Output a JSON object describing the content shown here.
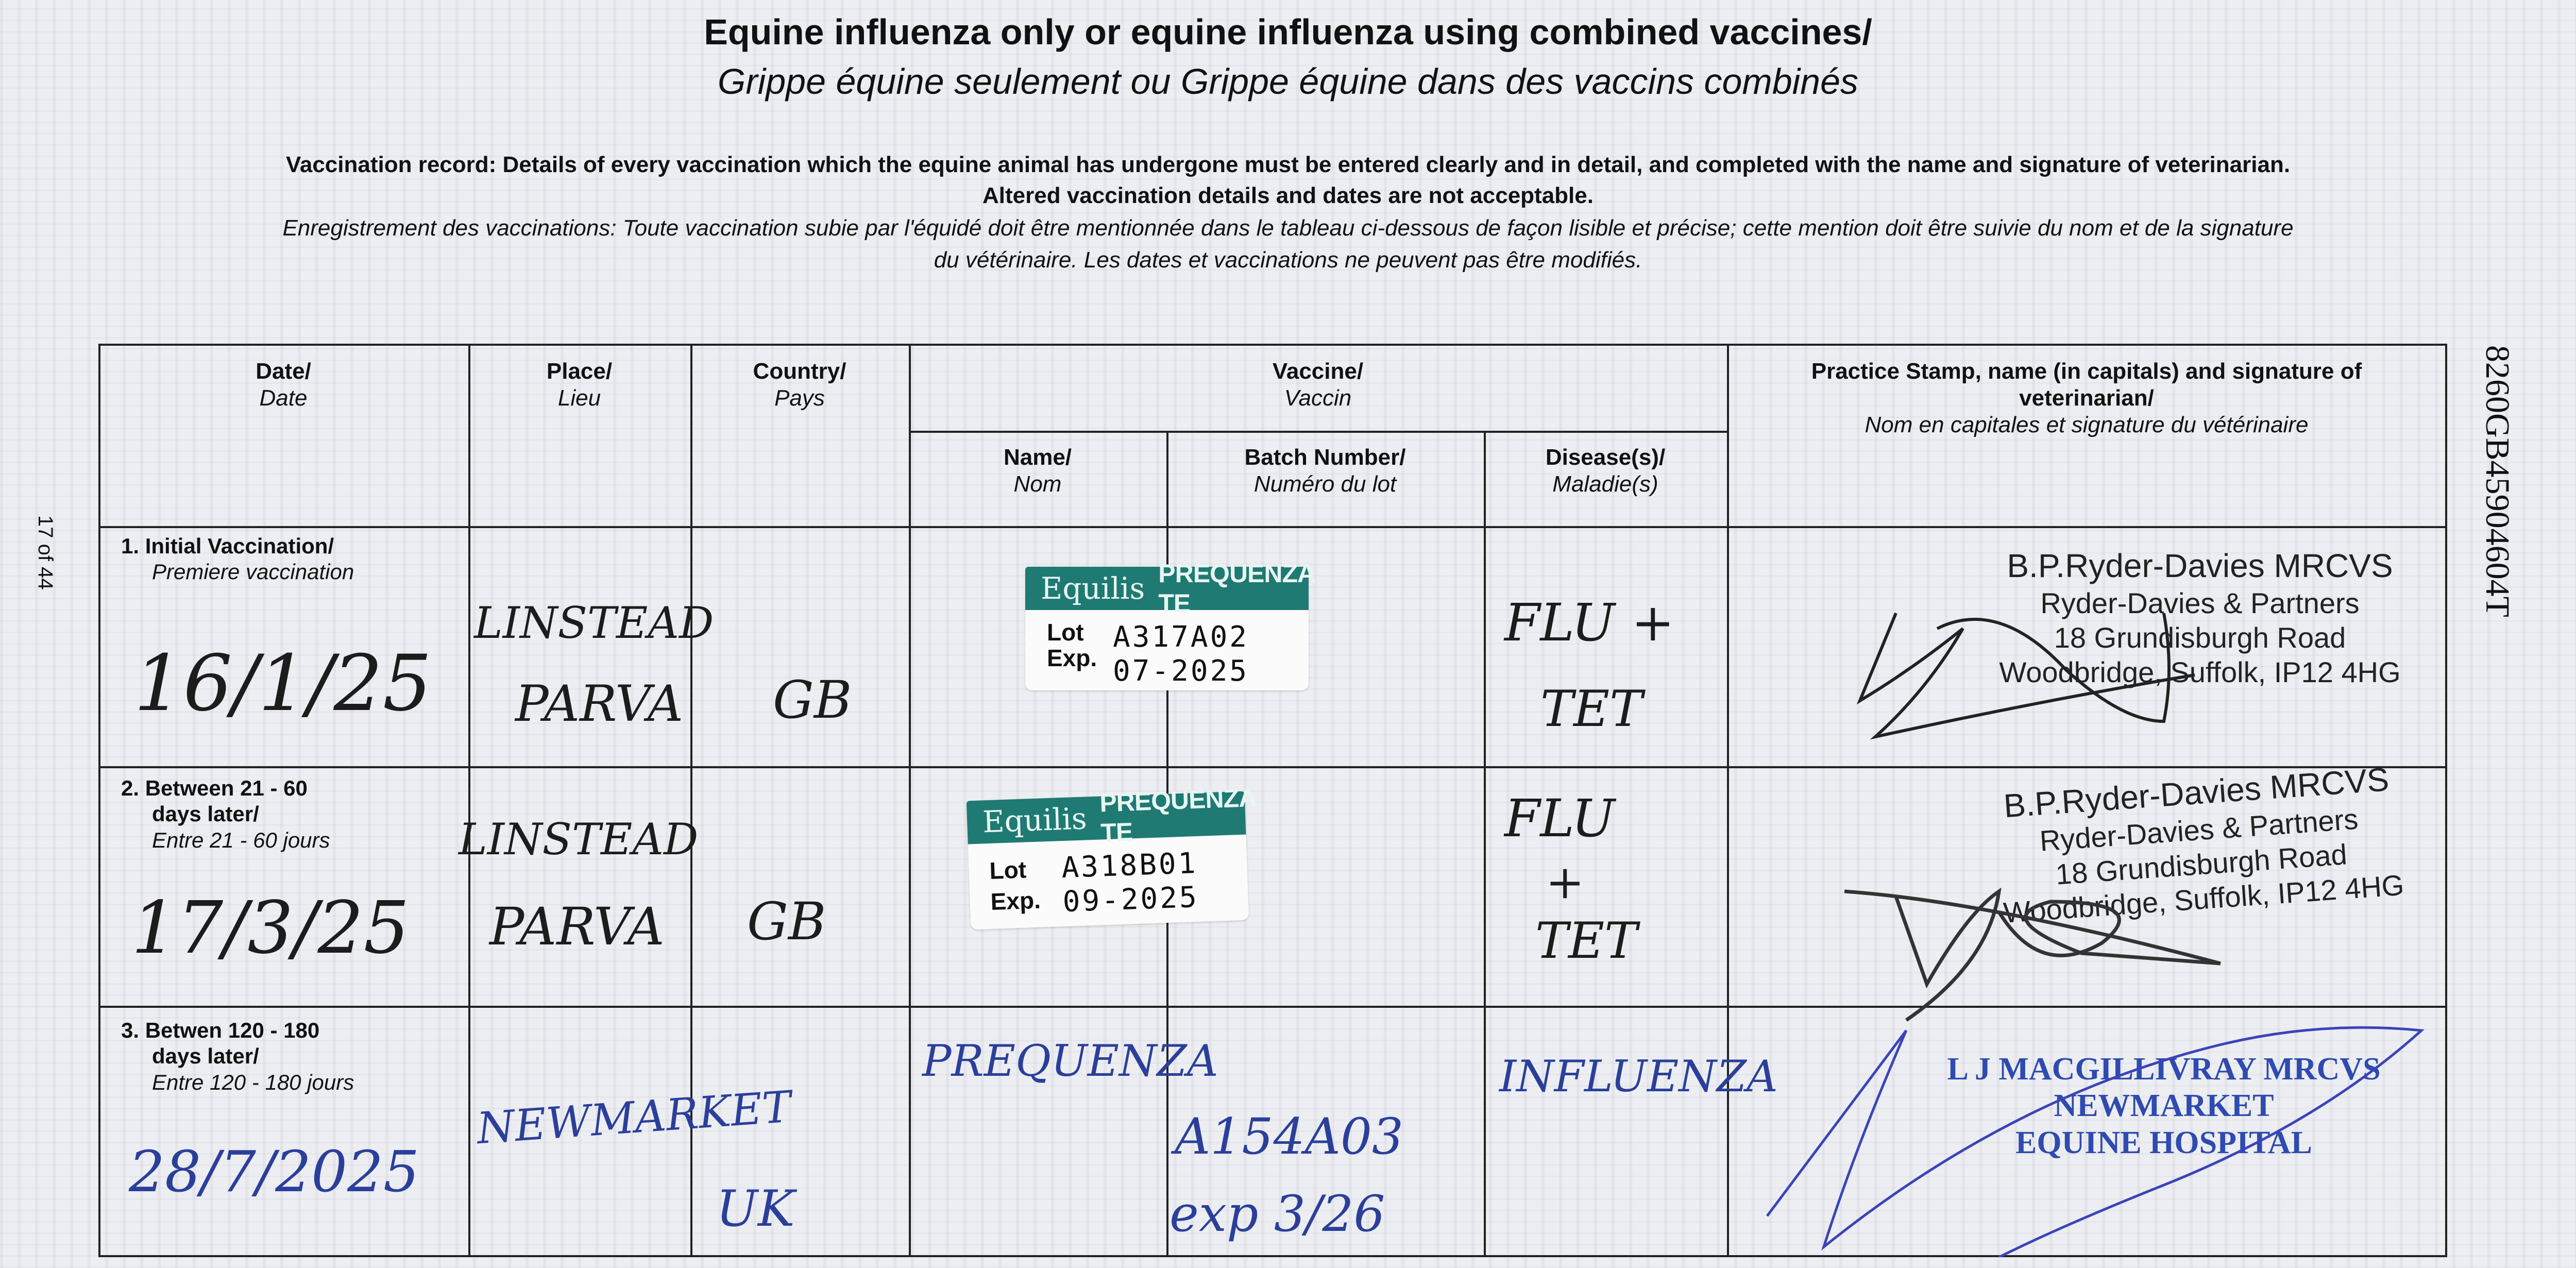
{
  "header": {
    "title_en": "Equine influenza only or equine influenza using combined vaccines/",
    "title_fr": "Grippe équine seulement ou Grippe équine dans des vaccins combinés",
    "instructions_en_1": "Vaccination record: Details of every vaccination which the equine animal has undergone must be entered clearly and in detail, and completed with the name and signature of veterinarian.",
    "instructions_en_2": "Altered vaccination details and dates are not acceptable.",
    "instructions_fr_1": "Enregistrement des vaccinations: Toute vaccination subie par l'équidé doit être mentionnée dans le tableau ci-dessous de façon lisible et précise; cette mention doit être suivie du nom et de la signature",
    "instructions_fr_2": "du vétérinaire. Les dates et vaccinations ne peuvent pas être modifiés."
  },
  "page_number": "17 of 44",
  "document_code": "8260GB45904604T",
  "columns": {
    "date": {
      "en": "Date/",
      "fr": "Date"
    },
    "place": {
      "en": "Place/",
      "fr": "Lieu"
    },
    "country": {
      "en": "Country/",
      "fr": "Pays"
    },
    "vaccine": {
      "en": "Vaccine/",
      "fr": "Vaccin"
    },
    "name": {
      "en": "Name/",
      "fr": "Nom"
    },
    "batch": {
      "en": "Batch Number/",
      "fr": "Numéro du lot"
    },
    "disease": {
      "en": "Disease(s)/",
      "fr": "Maladie(s)"
    },
    "vet": {
      "en": "Practice Stamp, name (in capitals) and signature of veterinarian/",
      "fr": "Nom en capitales et signature du vétérinaire"
    }
  },
  "rows": [
    {
      "label_en_1": "1. Initial Vaccination/",
      "label_fr": "Premiere vaccination",
      "date": "16/1/25",
      "place_1": "LINSTEAD",
      "place_2": "PARVA",
      "country": "GB",
      "vaccine_label": {
        "brand": "Equilis",
        "product": "PREQUENZA TE",
        "lot_key": "Lot",
        "lot": "A317A02",
        "exp_key": "Exp.",
        "exp": "07-2025"
      },
      "disease_1": "FLU +",
      "disease_2": "TET",
      "stamp": [
        "B.P.Ryder-Davies  MRCVS",
        "Ryder-Davies & Partners",
        "18 Grundisburgh Road",
        "Woodbridge, Suffolk, IP12 4HG"
      ]
    },
    {
      "label_en_1": "2. Between 21 - 60",
      "label_en_2": "days later/",
      "label_fr": "Entre 21 - 60 jours",
      "date": "17/3/25",
      "place_1": "LINSTEAD",
      "place_2": "PARVA",
      "country": "GB",
      "vaccine_label": {
        "brand": "Equilis",
        "product": "PREQUENZA TE",
        "lot_key": "Lot",
        "lot": "A318B01",
        "exp_key": "Exp.",
        "exp": "09-2025"
      },
      "disease_1": "FLU",
      "disease_plus": "+",
      "disease_2": "TET",
      "stamp": [
        "B.P.Ryder-Davies  MRCVS",
        "Ryder-Davies & Partners",
        "18 Grundisburgh Road",
        "Woodbridge, Suffolk, IP12 4HG"
      ]
    },
    {
      "label_en_1": "3. Betwen 120 - 180",
      "label_en_2": "days later/",
      "label_fr": "Entre 120 - 180 jours",
      "date": "28/7/2025",
      "place": "NEWMARKET",
      "country": "UK",
      "name": "PREQUENZA",
      "batch_1": "A154A03",
      "batch_2": "exp 3/26",
      "disease": "INFLUENZA",
      "stamp": [
        "L J MACGILLIVRAY MRCVS",
        "NEWMARKET",
        "EQUINE HOSPITAL"
      ]
    }
  ],
  "colors": {
    "label_band": "#1f7a73",
    "blue_ink": "#2b3f9a",
    "stamp_blue": "#2f4ab0"
  }
}
